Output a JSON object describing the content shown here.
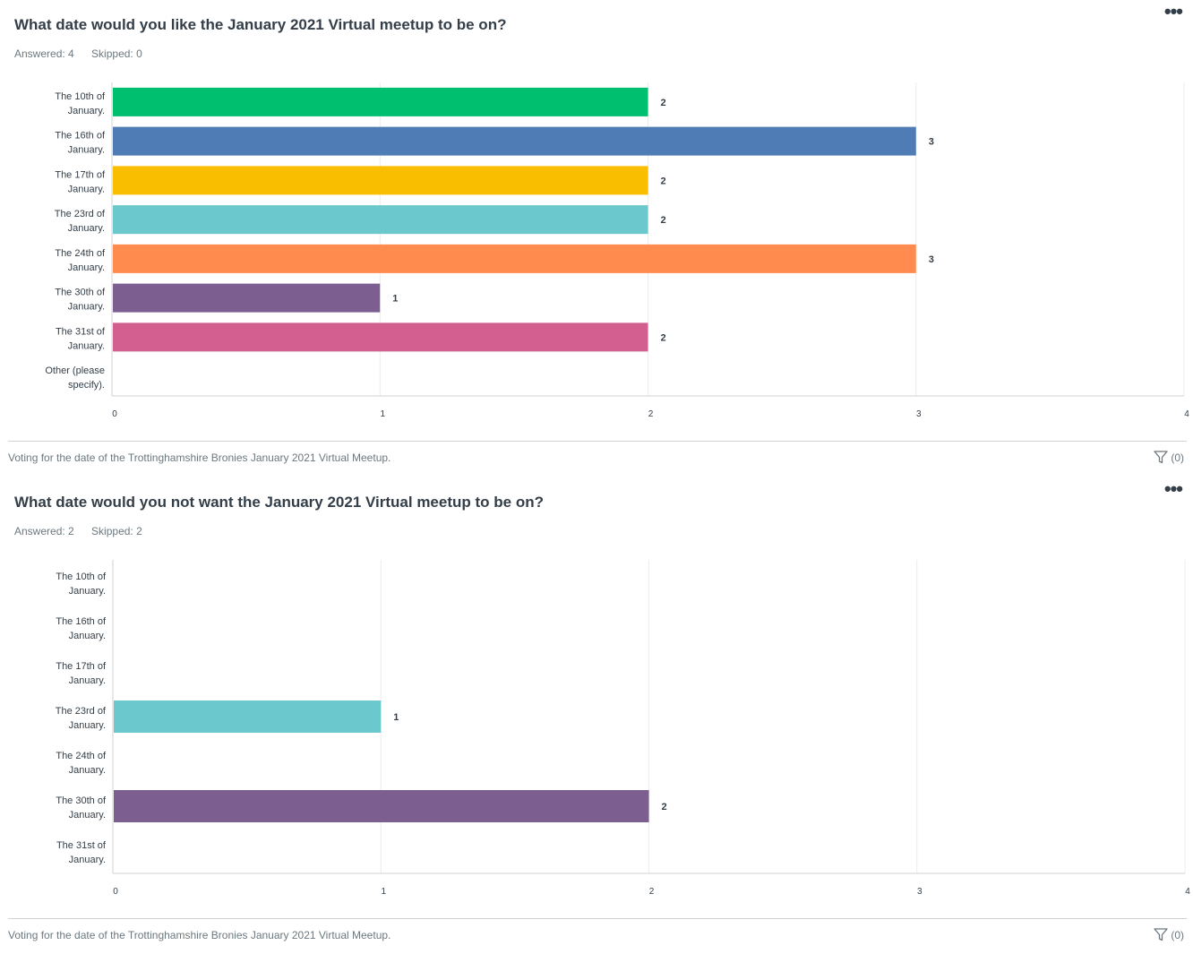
{
  "questions": [
    {
      "title": "What date would you like the January 2021 Virtual meetup to be on?",
      "answered": "Answered: 4",
      "skipped": "Skipped: 0",
      "footnote": "Voting for the date of the Trottinghamshire Bronies January 2021 Virtual Meetup.",
      "filter_label": "(0)",
      "more_label": "•••"
    },
    {
      "title": "What date would you not want the January 2021 Virtual meetup to be on?",
      "answered": "Answered: 2",
      "skipped": "Skipped: 2",
      "footnote": "Voting for the date of the Trottinghamshire Bronies January 2021 Virtual Meetup.",
      "filter_label": "(0)",
      "more_label": "•••"
    }
  ],
  "chart_data": [
    {
      "type": "bar",
      "orientation": "horizontal",
      "categories": [
        [
          "The 10th of",
          "January."
        ],
        [
          "The 16th of",
          "January."
        ],
        [
          "The 17th of",
          "January."
        ],
        [
          "The 23rd of",
          "January."
        ],
        [
          "The 24th of",
          "January."
        ],
        [
          "The 30th of",
          "January."
        ],
        [
          "The 31st of",
          "January."
        ],
        [
          "Other (please",
          "specify)."
        ]
      ],
      "values": [
        2,
        3,
        2,
        2,
        3,
        1,
        2,
        0
      ],
      "colors": [
        "#00bf6f",
        "#507cb6",
        "#f9be00",
        "#6bc8cd",
        "#ff8b4f",
        "#7d5e90",
        "#d25f90",
        "#dbdbdb"
      ],
      "xlim": [
        0,
        4
      ],
      "xticks": [
        "0",
        "1",
        "2",
        "3",
        "4"
      ],
      "grid": true
    },
    {
      "type": "bar",
      "orientation": "horizontal",
      "categories": [
        [
          "The 10th of",
          "January."
        ],
        [
          "The 16th of",
          "January."
        ],
        [
          "The 17th of",
          "January."
        ],
        [
          "The 23rd of",
          "January."
        ],
        [
          "The 24th of",
          "January."
        ],
        [
          "The 30th of",
          "January."
        ],
        [
          "The 31st of",
          "January."
        ]
      ],
      "values": [
        0,
        0,
        0,
        1,
        0,
        2,
        0
      ],
      "colors": [
        "#00bf6f",
        "#507cb6",
        "#f9be00",
        "#6bc8cd",
        "#ff8b4f",
        "#7d5e90",
        "#d25f90"
      ],
      "xlim": [
        0,
        4
      ],
      "xticks": [
        "0",
        "1",
        "2",
        "3",
        "4"
      ],
      "grid": true
    }
  ]
}
